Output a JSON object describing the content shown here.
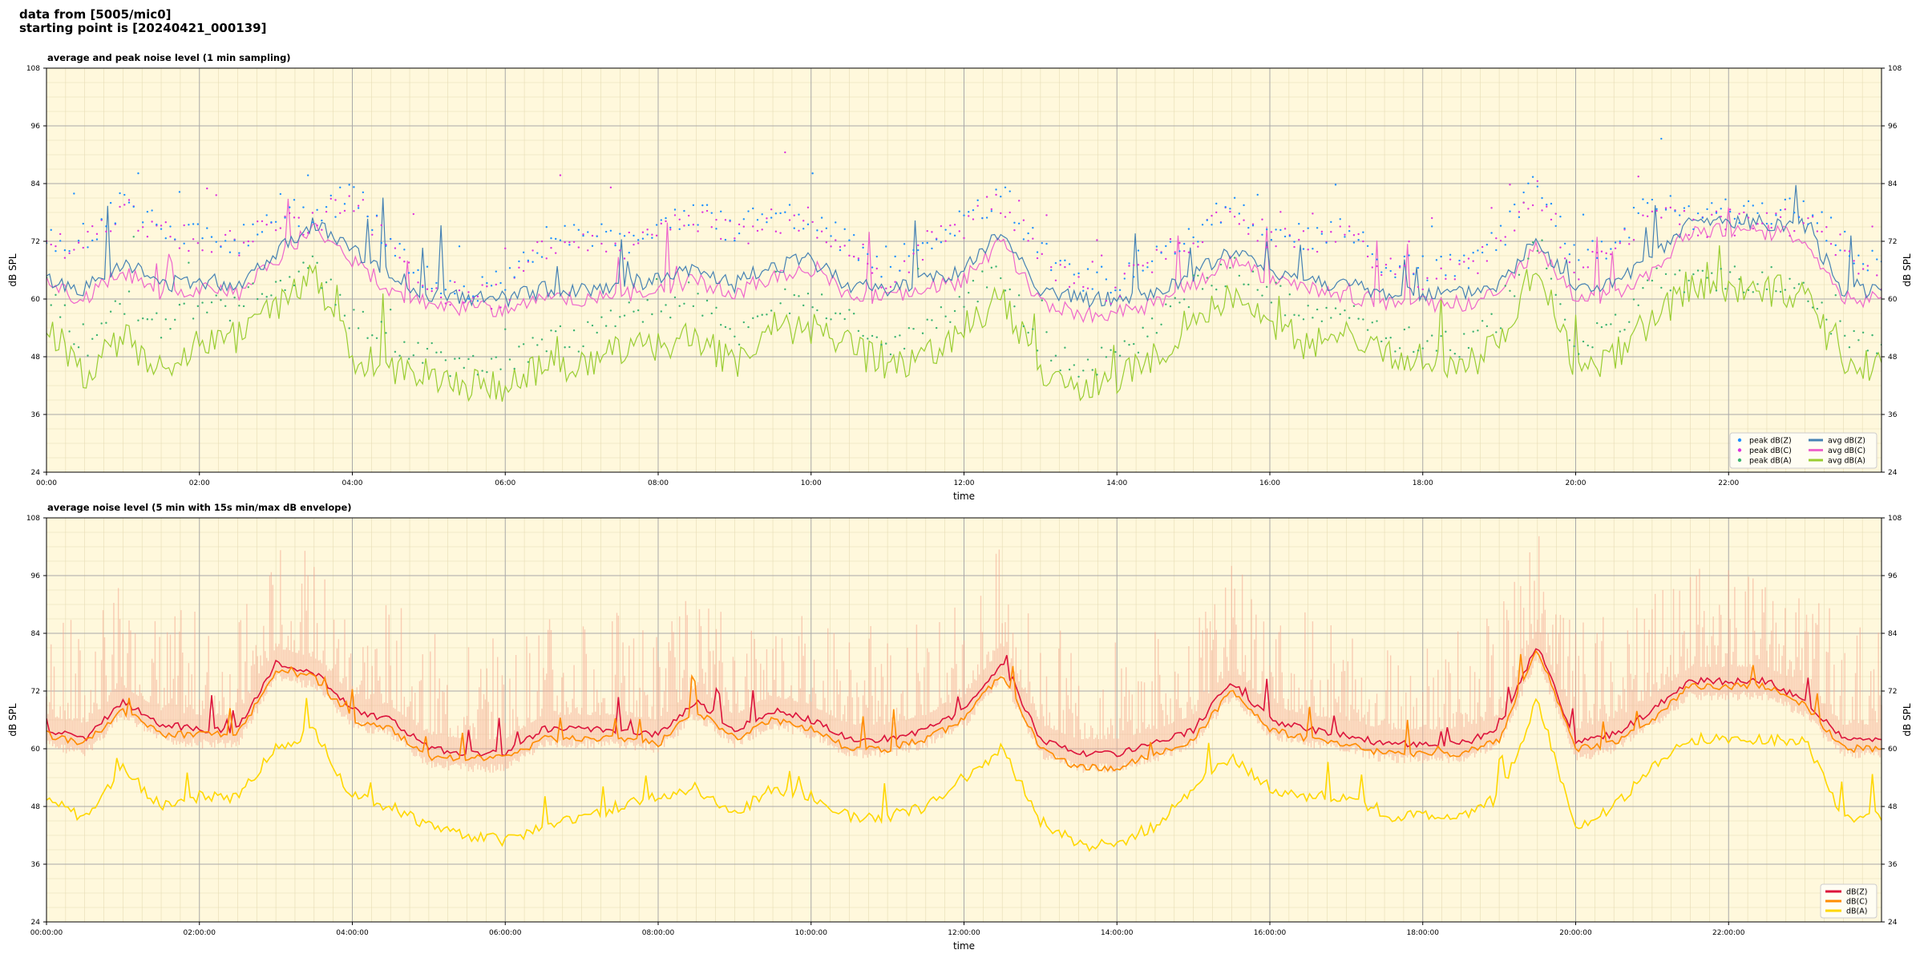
{
  "header": {
    "line1": "data from [5005/mic0]",
    "line2": "starting point is [20240421_000139]"
  },
  "colors": {
    "background": "#fff8dc",
    "avg_dbz": "#4682b4",
    "avg_dbc": "#ee66cc",
    "avg_dba": "#9acd32",
    "peak_dbz": "#1e90ff",
    "peak_dbc": "#dd33dd",
    "peak_dba": "#3cb371",
    "dbz": "#dc143c",
    "dbc": "#ff8c00",
    "dba": "#ffd700",
    "envelope": "#f4a890"
  },
  "chart_data": [
    {
      "type": "line",
      "title": "average and peak noise level (1 min sampling)",
      "xlabel": "time",
      "ylabel": "dB SPL",
      "ylim": [
        24,
        108
      ],
      "yticks": [
        24,
        36,
        48,
        60,
        72,
        84,
        96,
        108
      ],
      "xlim": [
        0,
        24
      ],
      "xticklabels": [
        "00:00",
        "02:00",
        "04:00",
        "06:00",
        "08:00",
        "10:00",
        "12:00",
        "14:00",
        "16:00",
        "18:00",
        "20:00",
        "22:00"
      ],
      "grid": true,
      "legend_position": "lower-right",
      "legend": [
        {
          "label": "peak dB(Z)",
          "kind": "dot"
        },
        {
          "label": "avg dB(Z)",
          "kind": "line"
        },
        {
          "label": "peak dB(C)",
          "kind": "dot"
        },
        {
          "label": "avg dB(C)",
          "kind": "line"
        },
        {
          "label": "peak dB(A)",
          "kind": "dot"
        },
        {
          "label": "avg dB(A)",
          "kind": "line"
        }
      ],
      "x": [
        0.0,
        0.5,
        1.0,
        1.5,
        2.0,
        2.5,
        3.0,
        3.5,
        4.0,
        4.5,
        5.0,
        5.5,
        6.0,
        6.5,
        7.0,
        7.5,
        8.0,
        8.5,
        9.0,
        9.5,
        10.0,
        10.5,
        11.0,
        11.5,
        12.0,
        12.5,
        13.0,
        13.5,
        14.0,
        14.5,
        15.0,
        15.5,
        16.0,
        16.5,
        17.0,
        17.5,
        18.0,
        18.5,
        19.0,
        19.5,
        20.0,
        20.5,
        21.0,
        21.5,
        22.0,
        22.5,
        23.0,
        23.5,
        24.0
      ],
      "series": [
        {
          "name": "avg dB(Z)",
          "values": [
            64,
            62,
            68,
            63,
            64,
            63,
            70,
            76,
            70,
            65,
            61,
            60,
            60,
            62,
            62,
            63,
            64,
            66,
            63,
            67,
            68,
            63,
            62,
            64,
            66,
            74,
            62,
            60,
            60,
            61,
            65,
            70,
            66,
            64,
            63,
            61,
            61,
            61,
            63,
            72,
            62,
            63,
            68,
            76,
            76,
            76,
            75,
            62,
            62
          ]
        },
        {
          "name": "avg dB(C)",
          "values": [
            63,
            60,
            66,
            61,
            62,
            61,
            68,
            75,
            68,
            62,
            59,
            58,
            58,
            60,
            60,
            61,
            62,
            64,
            61,
            65,
            66,
            61,
            60,
            62,
            64,
            72,
            59,
            57,
            57,
            59,
            63,
            68,
            64,
            62,
            61,
            59,
            59,
            59,
            61,
            71,
            60,
            61,
            66,
            74,
            74,
            74,
            73,
            60,
            60
          ]
        },
        {
          "name": "avg dB(A)",
          "values": [
            55,
            44,
            52,
            46,
            51,
            52,
            58,
            65,
            48,
            46,
            44,
            42,
            42,
            46,
            46,
            50,
            50,
            52,
            46,
            54,
            54,
            50,
            46,
            48,
            54,
            60,
            45,
            42,
            43,
            48,
            56,
            60,
            56,
            50,
            52,
            48,
            48,
            46,
            50,
            68,
            44,
            48,
            56,
            62,
            62,
            62,
            61,
            46,
            46
          ]
        },
        {
          "name": "peak dB(Z)",
          "values": [
            72,
            73,
            80,
            74,
            74,
            72,
            78,
            77,
            82,
            72,
            64,
            62,
            63,
            72,
            74,
            72,
            74,
            78,
            74,
            78,
            76,
            72,
            66,
            72,
            76,
            82,
            70,
            64,
            64,
            70,
            74,
            80,
            74,
            73,
            74,
            68,
            66,
            68,
            72,
            84,
            68,
            72,
            80,
            77,
            78,
            78,
            78,
            72,
            66
          ]
        },
        {
          "name": "peak dB(C)",
          "values": [
            71,
            72,
            79,
            73,
            73,
            71,
            77,
            76,
            81,
            71,
            62,
            60,
            61,
            71,
            73,
            71,
            73,
            77,
            73,
            77,
            75,
            71,
            64,
            71,
            75,
            81,
            68,
            62,
            62,
            68,
            73,
            79,
            73,
            72,
            73,
            66,
            64,
            66,
            71,
            83,
            66,
            71,
            79,
            75,
            76,
            76,
            76,
            71,
            64
          ]
        },
        {
          "name": "peak dB(A)",
          "values": [
            62,
            50,
            60,
            54,
            58,
            58,
            64,
            66,
            56,
            52,
            48,
            46,
            45,
            52,
            52,
            56,
            58,
            60,
            52,
            60,
            60,
            56,
            50,
            54,
            60,
            66,
            50,
            46,
            48,
            54,
            62,
            66,
            62,
            56,
            58,
            52,
            52,
            50,
            56,
            72,
            50,
            54,
            62,
            64,
            64,
            64,
            63,
            52,
            50
          ]
        }
      ]
    },
    {
      "type": "line",
      "title": "average noise level (5 min with 15s min/max dB envelope)",
      "xlabel": "time",
      "ylabel": "dB SPL",
      "ylim": [
        24,
        108
      ],
      "yticks": [
        24,
        36,
        48,
        60,
        72,
        84,
        96,
        108
      ],
      "xlim": [
        0,
        24
      ],
      "xticklabels": [
        "00:00:00",
        "02:00:00",
        "04:00:00",
        "06:00:00",
        "08:00:00",
        "10:00:00",
        "12:00:00",
        "14:00:00",
        "16:00:00",
        "18:00:00",
        "20:00:00",
        "22:00:00"
      ],
      "grid": true,
      "legend_position": "lower-right",
      "legend": [
        {
          "label": "dB(Z)",
          "kind": "line"
        },
        {
          "label": "dB(C)",
          "kind": "line"
        },
        {
          "label": "dB(A)",
          "kind": "line"
        }
      ],
      "x": [
        0.0,
        0.5,
        1.0,
        1.5,
        2.0,
        2.5,
        3.0,
        3.5,
        4.0,
        4.5,
        5.0,
        5.5,
        6.0,
        6.5,
        7.0,
        7.5,
        8.0,
        8.5,
        9.0,
        9.5,
        10.0,
        10.5,
        11.0,
        11.5,
        12.0,
        12.5,
        13.0,
        13.5,
        14.0,
        14.5,
        15.0,
        15.5,
        16.0,
        16.5,
        17.0,
        17.5,
        18.0,
        18.5,
        19.0,
        19.5,
        20.0,
        20.5,
        21.0,
        21.5,
        22.0,
        22.5,
        23.0,
        23.5,
        24.0
      ],
      "series": [
        {
          "name": "dB(Z)",
          "values": [
            64,
            62,
            70,
            65,
            64,
            64,
            78,
            76,
            68,
            66,
            60,
            59,
            59,
            64,
            64,
            64,
            63,
            70,
            64,
            68,
            66,
            62,
            62,
            64,
            68,
            78,
            62,
            59,
            59,
            61,
            64,
            74,
            66,
            64,
            63,
            61,
            61,
            61,
            64,
            82,
            61,
            63,
            68,
            74,
            74,
            74,
            70,
            62,
            62
          ]
        },
        {
          "name": "dB(C)",
          "values": [
            63,
            61,
            68,
            63,
            63,
            63,
            76,
            75,
            66,
            64,
            58,
            58,
            58,
            62,
            62,
            62,
            61,
            68,
            62,
            66,
            64,
            60,
            60,
            62,
            66,
            76,
            60,
            56,
            56,
            59,
            62,
            72,
            64,
            62,
            61,
            59,
            59,
            59,
            62,
            81,
            60,
            61,
            66,
            73,
            73,
            73,
            69,
            60,
            60
          ]
        },
        {
          "name": "dB(A)",
          "values": [
            50,
            45,
            56,
            48,
            50,
            50,
            60,
            64,
            50,
            48,
            44,
            42,
            41,
            44,
            46,
            48,
            50,
            52,
            46,
            52,
            50,
            46,
            46,
            48,
            54,
            60,
            45,
            40,
            40,
            44,
            52,
            58,
            52,
            50,
            50,
            46,
            46,
            46,
            50,
            70,
            44,
            48,
            56,
            62,
            62,
            62,
            62,
            46,
            46
          ]
        }
      ]
    }
  ]
}
